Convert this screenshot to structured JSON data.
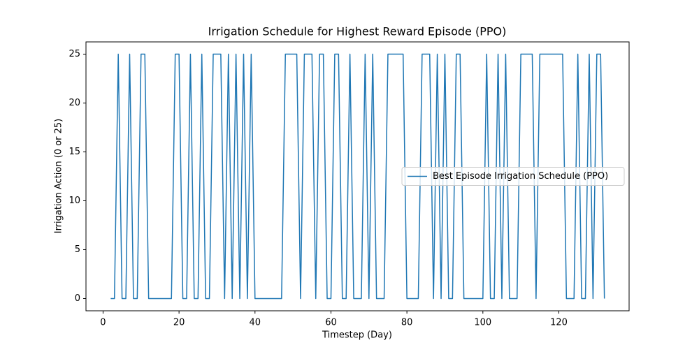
{
  "chart_data": {
    "type": "line",
    "title": "Irrigation Schedule for Highest Reward Episode (PPO)",
    "x_label": "Timestep (Day)",
    "y_label": "Irrigation Action (0 or 25)",
    "x": [
      2,
      3,
      4,
      5,
      6,
      7,
      8,
      9,
      10,
      11,
      12,
      13,
      14,
      15,
      16,
      17,
      18,
      19,
      20,
      21,
      22,
      23,
      24,
      25,
      26,
      27,
      28,
      29,
      30,
      31,
      32,
      33,
      34,
      35,
      36,
      37,
      38,
      39,
      40,
      41,
      42,
      43,
      44,
      45,
      46,
      47,
      48,
      49,
      50,
      51,
      52,
      53,
      54,
      55,
      56,
      57,
      58,
      59,
      60,
      61,
      62,
      63,
      64,
      65,
      66,
      67,
      68,
      69,
      70,
      71,
      72,
      73,
      74,
      75,
      76,
      77,
      78,
      79,
      80,
      81,
      82,
      83,
      84,
      85,
      86,
      87,
      88,
      89,
      90,
      91,
      92,
      93,
      94,
      95,
      96,
      97,
      98,
      99,
      100,
      101,
      102,
      103,
      104,
      105,
      106,
      107,
      108,
      109,
      110,
      111,
      112,
      113,
      114,
      115,
      116,
      117,
      118,
      119,
      120,
      121,
      122,
      123,
      124,
      125,
      126,
      127,
      128,
      129,
      130,
      131,
      132
    ],
    "series": [
      {
        "name": "Best Episode Irrigation Schedule (PPO)",
        "color": "#1f77b4",
        "values": [
          0,
          0,
          25,
          0,
          0,
          25,
          0,
          0,
          25,
          25,
          0,
          0,
          0,
          0,
          0,
          0,
          0,
          25,
          25,
          0,
          0,
          25,
          0,
          0,
          25,
          0,
          0,
          25,
          25,
          25,
          0,
          25,
          0,
          25,
          0,
          25,
          0,
          25,
          0,
          0,
          0,
          0,
          0,
          0,
          0,
          0,
          25,
          25,
          25,
          25,
          0,
          25,
          25,
          25,
          0,
          25,
          25,
          0,
          0,
          25,
          25,
          0,
          0,
          25,
          0,
          0,
          0,
          25,
          0,
          25,
          0,
          0,
          0,
          25,
          25,
          25,
          25,
          25,
          0,
          0,
          0,
          0,
          25,
          25,
          25,
          0,
          25,
          0,
          25,
          0,
          0,
          25,
          25,
          0,
          0,
          0,
          0,
          0,
          0,
          25,
          0,
          0,
          25,
          0,
          25,
          0,
          0,
          0,
          25,
          25,
          25,
          25,
          0,
          25,
          25,
          25,
          25,
          25,
          25,
          25,
          0,
          0,
          0,
          25,
          0,
          0,
          25,
          0,
          25,
          25,
          0
        ]
      }
    ],
    "xlim": [
      -4.5,
      138.5
    ],
    "ylim": [
      -1.25,
      26.25
    ],
    "xticks": [
      0,
      20,
      40,
      60,
      80,
      100,
      120
    ],
    "yticks": [
      0,
      5,
      10,
      15,
      20,
      25
    ],
    "grid": false,
    "legend": "center right"
  }
}
